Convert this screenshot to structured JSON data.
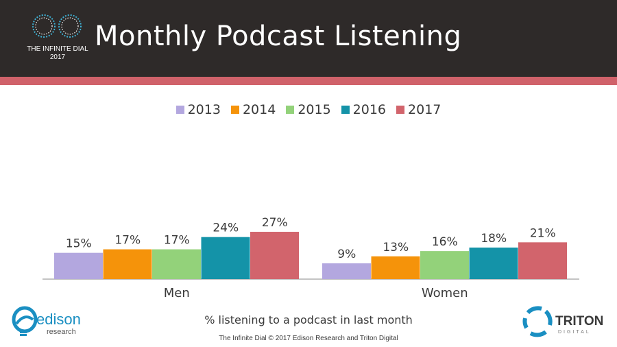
{
  "header": {
    "title": "Monthly Podcast Listening",
    "logo_line1": "THE INFINITE DIAL",
    "logo_line2": "2017"
  },
  "colors": {
    "header_bg": "#2e2a29",
    "accent_stripe": "#d0626a"
  },
  "chart_data": {
    "type": "bar",
    "categories": [
      "Men",
      "Women"
    ],
    "series": [
      {
        "name": "2013",
        "color": "#b3a7df",
        "values": [
          15,
          9
        ]
      },
      {
        "name": "2014",
        "color": "#f5930a",
        "values": [
          17,
          13
        ]
      },
      {
        "name": "2015",
        "color": "#93d27a",
        "values": [
          17,
          16
        ]
      },
      {
        "name": "2016",
        "color": "#1493a8",
        "values": [
          24,
          18
        ]
      },
      {
        "name": "2017",
        "color": "#d2646c",
        "values": [
          27,
          21
        ]
      }
    ],
    "value_suffix": "%",
    "legend_position": "top-center",
    "grid": false,
    "ylim": [
      0,
      60
    ]
  },
  "caption": "% listening to a podcast in last month",
  "footer": "The Infinite Dial  © 2017 Edison Research and Triton Digital",
  "logos": {
    "edison_name": "edison",
    "edison_sub": "research",
    "triton_name": "TRITON",
    "triton_sub": "DIGITAL"
  }
}
